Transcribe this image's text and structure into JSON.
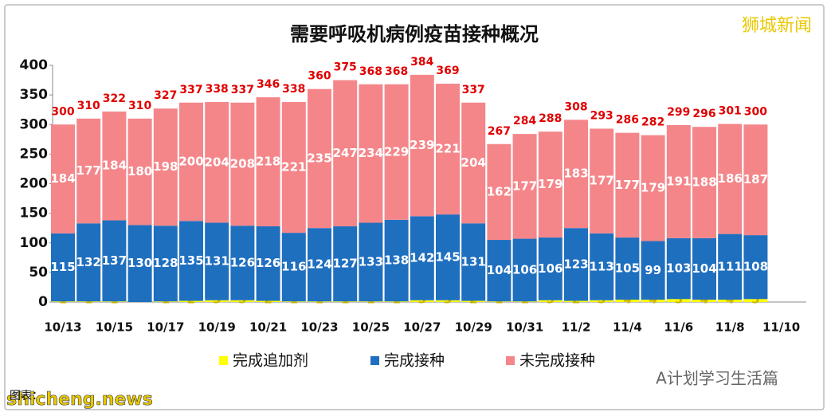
{
  "chart_data": {
    "type": "stacked_bar",
    "title": "需要呼吸机病例疫苗接种概况",
    "categories": [
      "10/13",
      null,
      "10/15",
      null,
      "10/17",
      null,
      "10/19",
      null,
      "10/21",
      null,
      "10/23",
      null,
      "10/25",
      null,
      "10/27",
      null,
      "10/29",
      null,
      "10/31",
      null,
      "11/2",
      null,
      "11/4",
      null,
      "11/6",
      null,
      "11/8",
      null,
      "11/10"
    ],
    "series": [
      {
        "name": "完成追加剂",
        "color": "#ffff00",
        "label_color": "#c8b400",
        "values": [
          1,
          1,
          1,
          0,
          1,
          2,
          3,
          3,
          2,
          1,
          1,
          1,
          1,
          1,
          3,
          3,
          2,
          1,
          1,
          3,
          2,
          3,
          4,
          4,
          5,
          4,
          4,
          5,
          null
        ]
      },
      {
        "name": "完成接种",
        "color": "#1f6fbf",
        "label_color": "#ffffff",
        "values": [
          115,
          132,
          137,
          130,
          128,
          135,
          131,
          126,
          126,
          116,
          124,
          127,
          133,
          138,
          142,
          145,
          131,
          104,
          106,
          106,
          123,
          113,
          105,
          99,
          103,
          104,
          111,
          108,
          null
        ]
      },
      {
        "name": "未完成接种",
        "color": "#f4868a",
        "label_color": "#ffffff",
        "values": [
          184,
          177,
          184,
          180,
          198,
          200,
          204,
          208,
          218,
          221,
          235,
          247,
          234,
          229,
          239,
          221,
          204,
          162,
          177,
          179,
          183,
          177,
          177,
          179,
          191,
          188,
          186,
          187,
          null
        ]
      }
    ],
    "totals": [
      300,
      310,
      322,
      310,
      327,
      337,
      338,
      337,
      346,
      338,
      360,
      375,
      368,
      368,
      384,
      369,
      337,
      267,
      284,
      288,
      308,
      293,
      286,
      282,
      299,
      296,
      301,
      300,
      null
    ],
    "total_color": "#e00000",
    "ylim": [
      0,
      400
    ],
    "yticks": [
      0,
      50,
      100,
      150,
      200,
      250,
      300,
      350,
      400
    ],
    "grid": false,
    "annotations": {
      "brand": "狮城新闻",
      "site": "shicheng.news",
      "source": "图表：",
      "account": "A计划学习生活篇"
    }
  }
}
